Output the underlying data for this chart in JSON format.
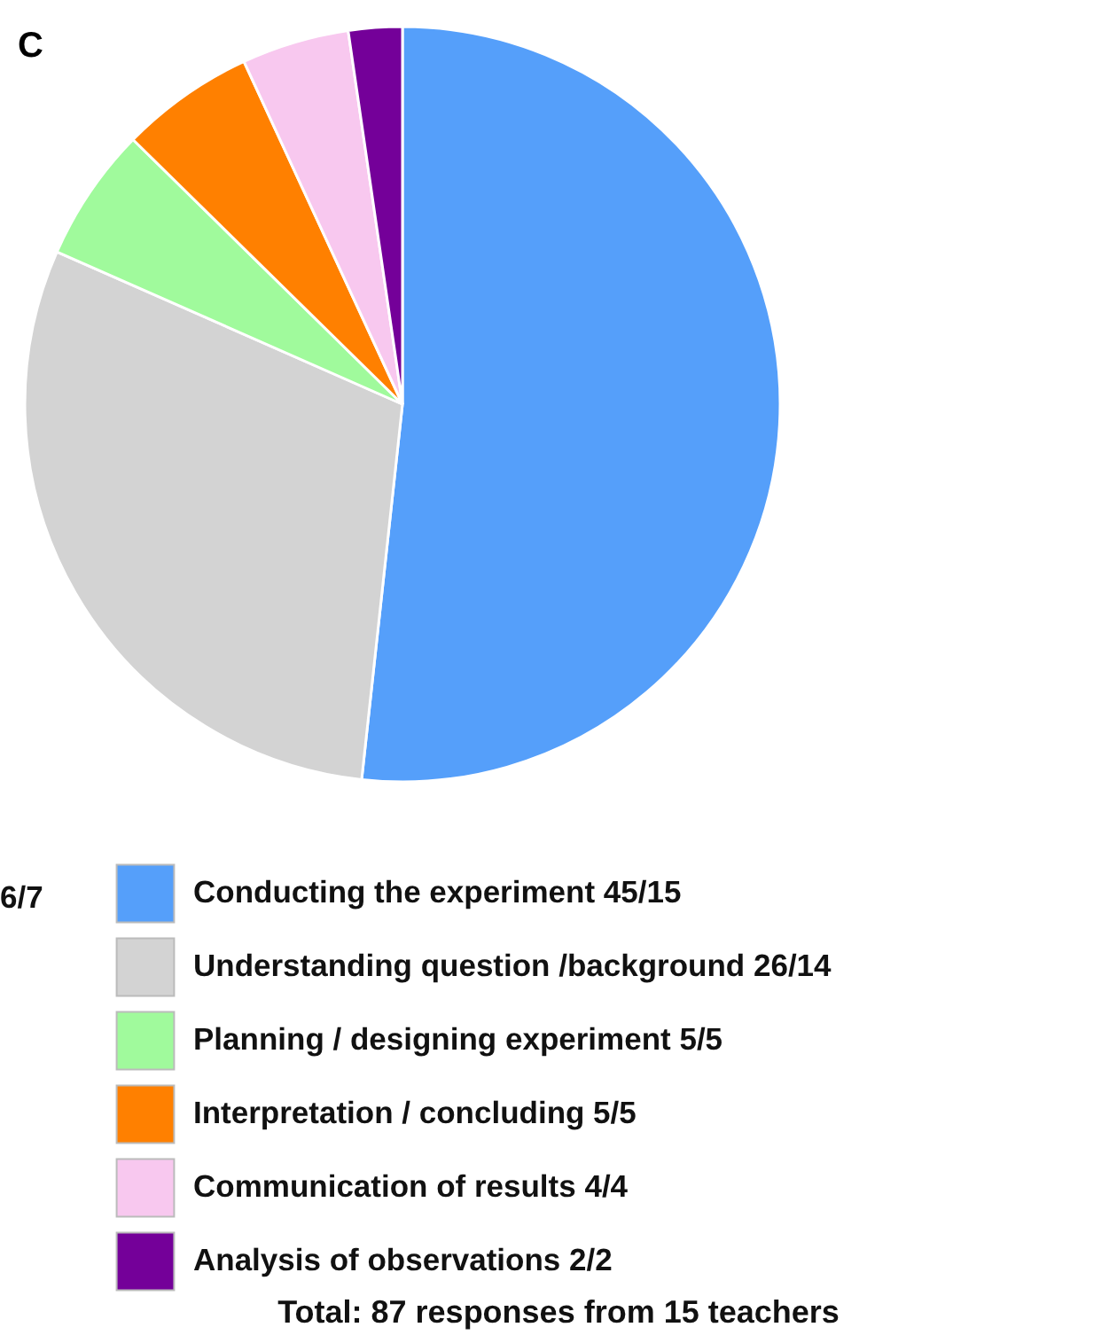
{
  "chart_data": {
    "type": "pie",
    "title": "C",
    "categories": [
      "Conducting the experiment 45/15",
      "Understanding question /background 26/14",
      "Planning / designing experiment 5/5",
      "Interpretation / concluding 5/5",
      "Communication of results 4/4",
      "Analysis of observations 2/2"
    ],
    "values": [
      45,
      26,
      5,
      5,
      4,
      2
    ],
    "colors": [
      "#559ffa",
      "#d3d3d3",
      "#a0fa9c",
      "#ff8000",
      "#f8c8ef",
      "#740099"
    ],
    "legend": "bottom",
    "annotations": [
      "6/7",
      "Total: 87 responses from 15 teachers"
    ]
  }
}
